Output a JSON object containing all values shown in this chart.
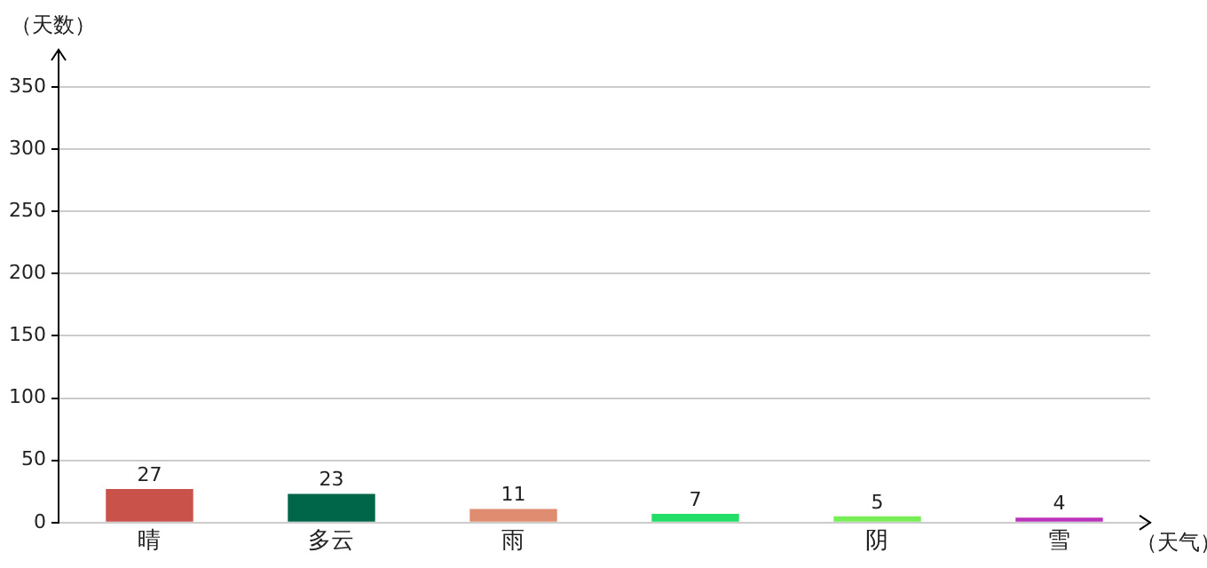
{
  "chart_data": {
    "type": "bar",
    "xlabel": "（天气）",
    "ylabel": "（天数）",
    "categories": [
      "晴",
      "多云",
      "雨",
      null,
      "阴",
      "雪"
    ],
    "values": [
      27,
      23,
      11,
      7,
      5,
      4
    ],
    "colors": [
      "#c9524a",
      "#00664a",
      "#e08c70",
      "#22dd66",
      "#77ee55",
      "#bb33bb"
    ],
    "ylim": [
      0,
      380
    ],
    "yticks": [
      0,
      50,
      100,
      150,
      200,
      250,
      300,
      350
    ],
    "grid": "y",
    "data_labels": true,
    "legend": false
  }
}
